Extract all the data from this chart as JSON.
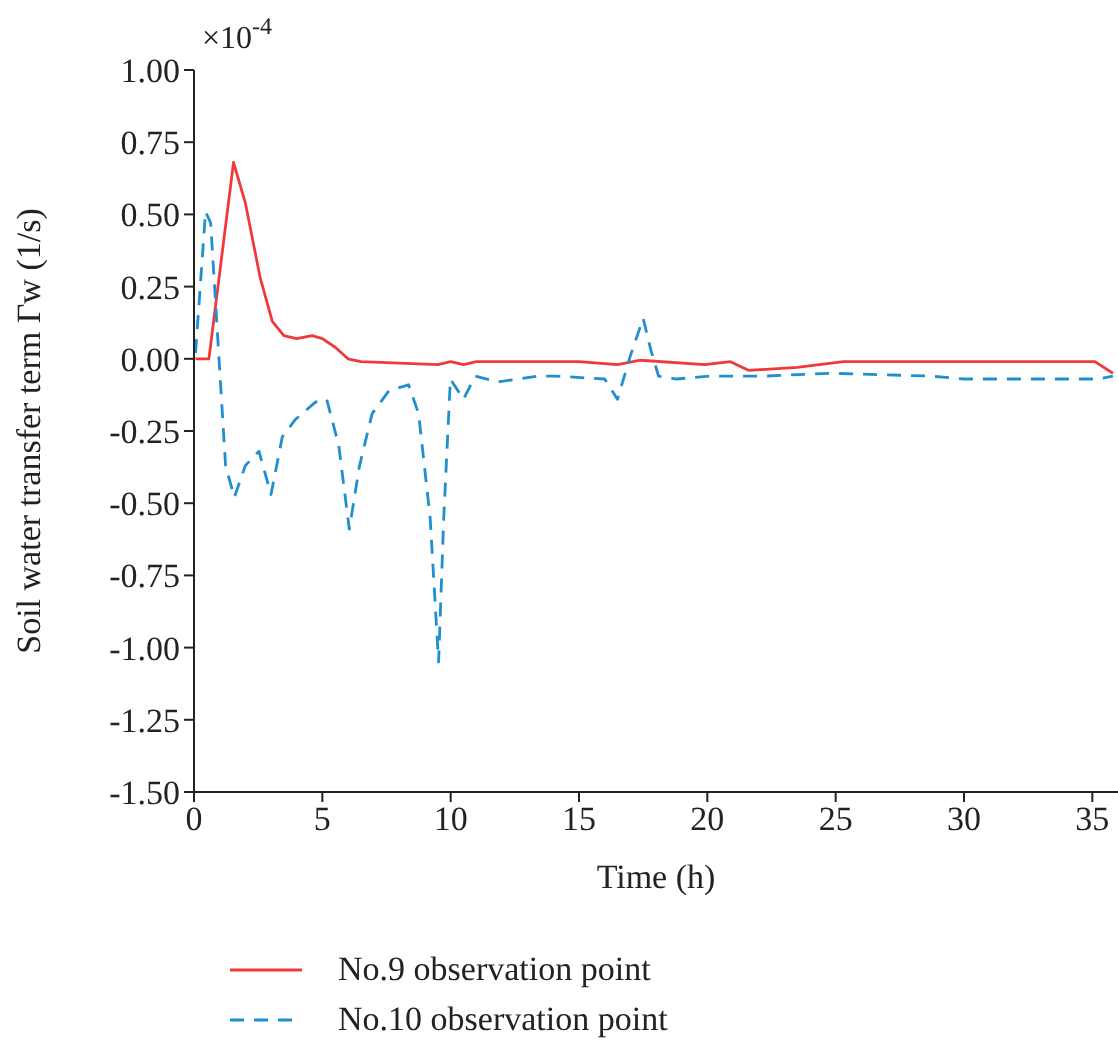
{
  "chart_data": {
    "type": "line",
    "xlabel": "Time (h)",
    "ylabel": "Soil water transfer term Γw (1/s)",
    "annotations": [
      "×10$^{-4}$"
    ],
    "xlim": [
      0,
      36
    ],
    "xticks": [
      0,
      5,
      10,
      15,
      20,
      25,
      30,
      35
    ],
    "ylim": [
      -1.5,
      1.0
    ],
    "yticks": [
      {
        "value": -1.5,
        "label": "-1.50"
      },
      {
        "value": -1.25,
        "label": "-1.25"
      },
      {
        "value": -1.0,
        "label": "-1.00"
      },
      {
        "value": -0.75,
        "label": "-0.75"
      },
      {
        "value": -0.5,
        "label": "-0.50"
      },
      {
        "value": -0.25,
        "label": "-0.25"
      },
      {
        "value": 0,
        "label": "0.00"
      },
      {
        "value": 0.25,
        "label": "0.25"
      },
      {
        "value": 0.5,
        "label": "0.50"
      },
      {
        "value": 0.75,
        "label": "0.75"
      },
      {
        "value": 1.0,
        "label": "1.00"
      }
    ],
    "grid": false,
    "legend": "bottom",
    "marker": "none",
    "series": [
      {
        "name": "No.9 observation point",
        "color": "#ee3a3a",
        "line_style": "solid",
        "x": [
          0.06,
          0.58,
          1.54,
          2.0,
          2.58,
          3.05,
          3.5,
          4.0,
          4.6,
          5.0,
          5.5,
          6.0,
          6.5,
          9.5,
          10.0,
          10.5,
          11.0,
          15.0,
          16.5,
          17.4,
          19.9,
          20.9,
          21.6,
          23.5,
          25.3,
          35.1,
          35.8
        ],
        "values": [
          0,
          0,
          0.68,
          0.54,
          0.28,
          0.13,
          0.08,
          0.07,
          0.08,
          0.07,
          0.04,
          0,
          -0.01,
          -0.02,
          -0.01,
          -0.02,
          -0.01,
          -0.01,
          -0.02,
          -0.005,
          -0.02,
          -0.01,
          -0.04,
          -0.03,
          -0.01,
          -0.01,
          -0.05
        ]
      },
      {
        "name": "No.10 observation point",
        "color": "#1f8fcf",
        "line_style": "dashed",
        "x": [
          0.06,
          0.45,
          0.65,
          1.23,
          1.57,
          2.0,
          2.53,
          3.0,
          3.44,
          3.95,
          4.73,
          5.17,
          5.64,
          6.05,
          6.45,
          6.94,
          7.6,
          8.36,
          8.75,
          9.2,
          9.53,
          9.73,
          9.99,
          10.5,
          10.95,
          11.85,
          13.4,
          14.1,
          16.0,
          16.5,
          17.0,
          17.5,
          17.8,
          18.1,
          18.8,
          20.1,
          22.2,
          24.8,
          28.7,
          30.0,
          34.6,
          35.2,
          35.8
        ],
        "values": [
          0.02,
          0.51,
          0.47,
          -0.37,
          -0.48,
          -0.37,
          -0.32,
          -0.47,
          -0.27,
          -0.21,
          -0.15,
          -0.14,
          -0.3,
          -0.59,
          -0.37,
          -0.19,
          -0.11,
          -0.09,
          -0.19,
          -0.55,
          -1.05,
          -0.55,
          -0.07,
          -0.14,
          -0.06,
          -0.08,
          -0.06,
          -0.06,
          -0.07,
          -0.14,
          0.01,
          0.14,
          0.03,
          -0.06,
          -0.07,
          -0.06,
          -0.06,
          -0.05,
          -0.06,
          -0.07,
          -0.07,
          -0.07,
          -0.06
        ]
      }
    ]
  }
}
